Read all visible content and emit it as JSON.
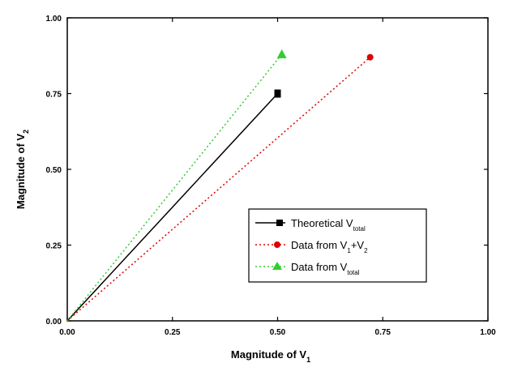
{
  "chart_data": {
    "type": "line",
    "xlabel": {
      "main": "Magnitude of V",
      "sub": "1"
    },
    "ylabel": {
      "main": "Magnitude of V",
      "sub": "2"
    },
    "xlim": [
      0,
      1
    ],
    "ylim": [
      0,
      1
    ],
    "x_ticks": [
      "0.00",
      "0.25",
      "0.50",
      "0.75",
      "1.00"
    ],
    "y_ticks": [
      "0.00",
      "0.25",
      "0.50",
      "0.75",
      "1.00"
    ],
    "grid": false,
    "legend_position": "lower-right",
    "series": [
      {
        "name": "Theoretical V",
        "name_sub": "total",
        "color": "#000000",
        "line_style": "solid",
        "marker": "square",
        "points": [
          {
            "x": 0.0,
            "y": 0.0
          },
          {
            "x": 0.5,
            "y": 0.75
          }
        ]
      },
      {
        "name": "Data from   V",
        "name_sub": "1",
        "name_suffix": "+V",
        "name_sub2": "2",
        "color": "#dd0000",
        "line_style": "dotted",
        "marker": "circle",
        "points": [
          {
            "x": 0.0,
            "y": 0.0
          },
          {
            "x": 0.72,
            "y": 0.87
          }
        ]
      },
      {
        "name": "Data from   V",
        "name_sub": "total",
        "color": "#33cc33",
        "line_style": "dotted",
        "marker": "triangle",
        "points": [
          {
            "x": 0.0,
            "y": 0.0
          },
          {
            "x": 0.51,
            "y": 0.88
          }
        ]
      }
    ]
  }
}
